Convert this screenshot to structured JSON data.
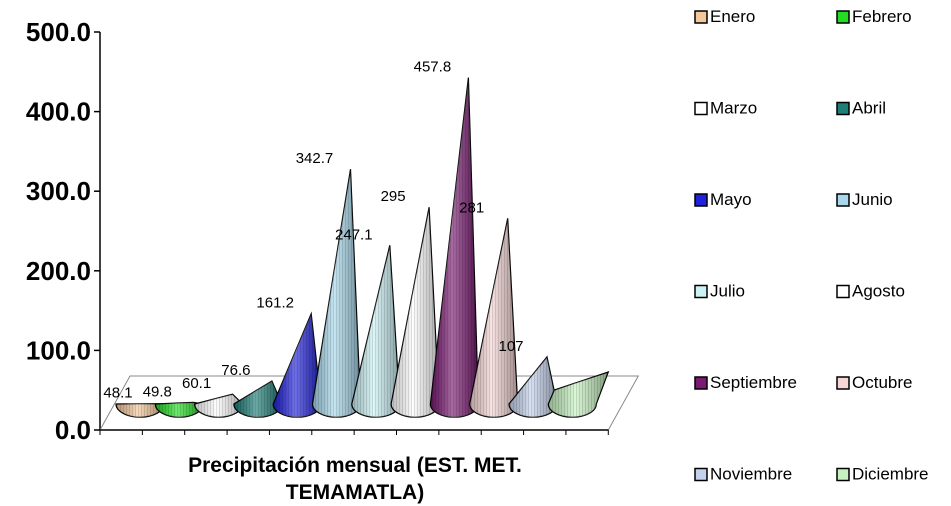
{
  "chart_data": {
    "type": "bar",
    "title": "",
    "xlabel": "Precipitación mensual (EST. MET. TEMAMATLA)",
    "xlabel_lines": [
      "Precipitación mensual (EST. MET.",
      "TEMAMATLA)"
    ],
    "ylabel": "",
    "ylim": [
      0,
      500
    ],
    "yticks": [
      "0.0",
      "100.0",
      "200.0",
      "300.0",
      "400.0",
      "500.0"
    ],
    "legend_position": "right",
    "series": [
      {
        "name": "Enero",
        "value": 48.1,
        "label": "48.1",
        "color": "#F4C89A"
      },
      {
        "name": "Febrero",
        "value": 49.8,
        "label": "49.8",
        "color": "#22DD22"
      },
      {
        "name": "Marzo",
        "value": 60.1,
        "label": "60.1",
        "color": "#FFFFFF"
      },
      {
        "name": "Abril",
        "value": 76.6,
        "label": "76.6",
        "color": "#1E7E78"
      },
      {
        "name": "Mayo",
        "value": 161.2,
        "label": "161.2",
        "color": "#2222DD"
      },
      {
        "name": "Junio",
        "value": 342.7,
        "label": "342.7",
        "color": "#A8D8EC"
      },
      {
        "name": "Julio",
        "value": 247.1,
        "label": "247.1",
        "color": "#CCF2F6"
      },
      {
        "name": "Agosto",
        "value": 295,
        "label": "295",
        "color": "#FFFFFF"
      },
      {
        "name": "Septiembre",
        "value": 457.8,
        "label": "457.8",
        "color": "#7A1A72"
      },
      {
        "name": "Octubre",
        "value": 281,
        "label": "281",
        "color": "#F6D6D6"
      },
      {
        "name": "Noviembre",
        "value": 107,
        "label": "107",
        "color": "#C4D2EC"
      },
      {
        "name": "Diciembre",
        "value": null,
        "label": "",
        "color": "#C6F2C0"
      }
    ]
  }
}
